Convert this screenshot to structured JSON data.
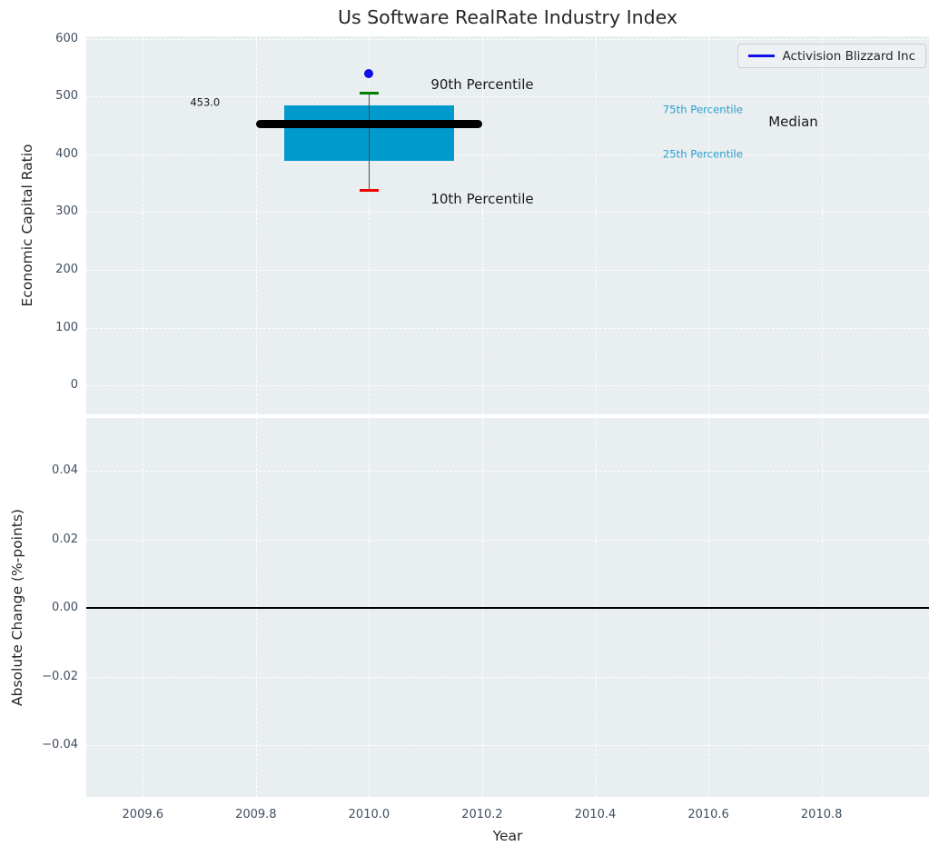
{
  "title": "Us Software RealRate Industry Index",
  "legend": {
    "label": "Activision Blizzard Inc"
  },
  "chart_data": {
    "type": "boxplot",
    "title": "Us Software RealRate Industry Index",
    "colors": {
      "plot_bg": "#e9eef0",
      "grid": "#ffffff",
      "box_fill": "#009acd",
      "median_line": "#000000",
      "whisker": "#4d4d4d",
      "p90_cap": "#007f00",
      "p10_cap": "#f20000",
      "company": "#1010e8",
      "tick_text": "#3f4e5f",
      "text": "#1a1a1a",
      "percentile_text": "#2b9fd0"
    },
    "top": {
      "ylabel": "Economic Capital Ratio",
      "xlim": [
        2009.5,
        2010.99
      ],
      "ylim": [
        -50,
        604
      ],
      "y_ticks": [
        {
          "v": 0,
          "label": "0"
        },
        {
          "v": 100,
          "label": "100"
        },
        {
          "v": 200,
          "label": "200"
        },
        {
          "v": 300,
          "label": "300"
        },
        {
          "v": 400,
          "label": "400"
        },
        {
          "v": 500,
          "label": "500"
        },
        {
          "v": 600,
          "label": "600"
        }
      ],
      "x_ticks": [
        {
          "v": 2009.6,
          "label": "2009.6"
        },
        {
          "v": 2009.8,
          "label": "2009.8"
        },
        {
          "v": 2010.0,
          "label": "2010.0"
        },
        {
          "v": 2010.2,
          "label": "2010.2"
        },
        {
          "v": 2010.4,
          "label": "2010.4"
        },
        {
          "v": 2010.6,
          "label": "2010.6"
        },
        {
          "v": 2010.8,
          "label": "2010.8"
        }
      ],
      "box": {
        "x": 2010.0,
        "box_left": 2009.85,
        "box_right": 2010.15,
        "q25": 388,
        "median": 453,
        "q75": 484,
        "p10": 337,
        "p90": 505,
        "cap_halfwidth": 0.017,
        "median_line_left": 2009.8,
        "median_line_right": 2010.2
      },
      "company_point": {
        "name": "Activision Blizzard Inc",
        "x": 2010.0,
        "y": 540
      },
      "annotations": [
        {
          "name": "median-value-label",
          "text": "453.0",
          "x": 2009.71,
          "y": 490,
          "size": 11.5,
          "color": "#1a1a1a"
        },
        {
          "name": "90th-percentile-label",
          "text": "90th Percentile",
          "x": 2010.2,
          "y": 521,
          "size": 15,
          "color": "#1a1a1a"
        },
        {
          "name": "10th-percentile-label",
          "text": "10th Percentile",
          "x": 2010.2,
          "y": 323,
          "size": 15,
          "color": "#1a1a1a"
        },
        {
          "name": "75th-percentile-label",
          "text": "75th Percentile",
          "x": 2010.59,
          "y": 476,
          "size": 11.7,
          "color": "#2b9fd0"
        },
        {
          "name": "25th-percentile-label",
          "text": "25th Percentile",
          "x": 2010.59,
          "y": 399,
          "size": 11.7,
          "color": "#2b9fd0"
        },
        {
          "name": "median-label",
          "text": "Median",
          "x": 2010.75,
          "y": 456,
          "size": 15,
          "color": "#1a1a1a"
        }
      ]
    },
    "bottom": {
      "ylabel": "Absolute Change (%-points)",
      "xlabel": "Year",
      "xlim": [
        2009.5,
        2010.99
      ],
      "ylim": [
        -0.0551,
        0.0554
      ],
      "y_ticks": [
        {
          "v": -0.04,
          "label": "−0.04"
        },
        {
          "v": -0.02,
          "label": "−0.02"
        },
        {
          "v": 0.0,
          "label": "0.00"
        },
        {
          "v": 0.02,
          "label": "0.02"
        },
        {
          "v": 0.04,
          "label": "0.04"
        }
      ],
      "x_ticks": [
        {
          "v": 2009.6,
          "label": "2009.6"
        },
        {
          "v": 2009.8,
          "label": "2009.8"
        },
        {
          "v": 2010.0,
          "label": "2010.0"
        },
        {
          "v": 2010.2,
          "label": "2010.2"
        },
        {
          "v": 2010.4,
          "label": "2010.4"
        },
        {
          "v": 2010.6,
          "label": "2010.6"
        },
        {
          "v": 2010.8,
          "label": "2010.8"
        }
      ],
      "zero_line": 0.0
    }
  }
}
